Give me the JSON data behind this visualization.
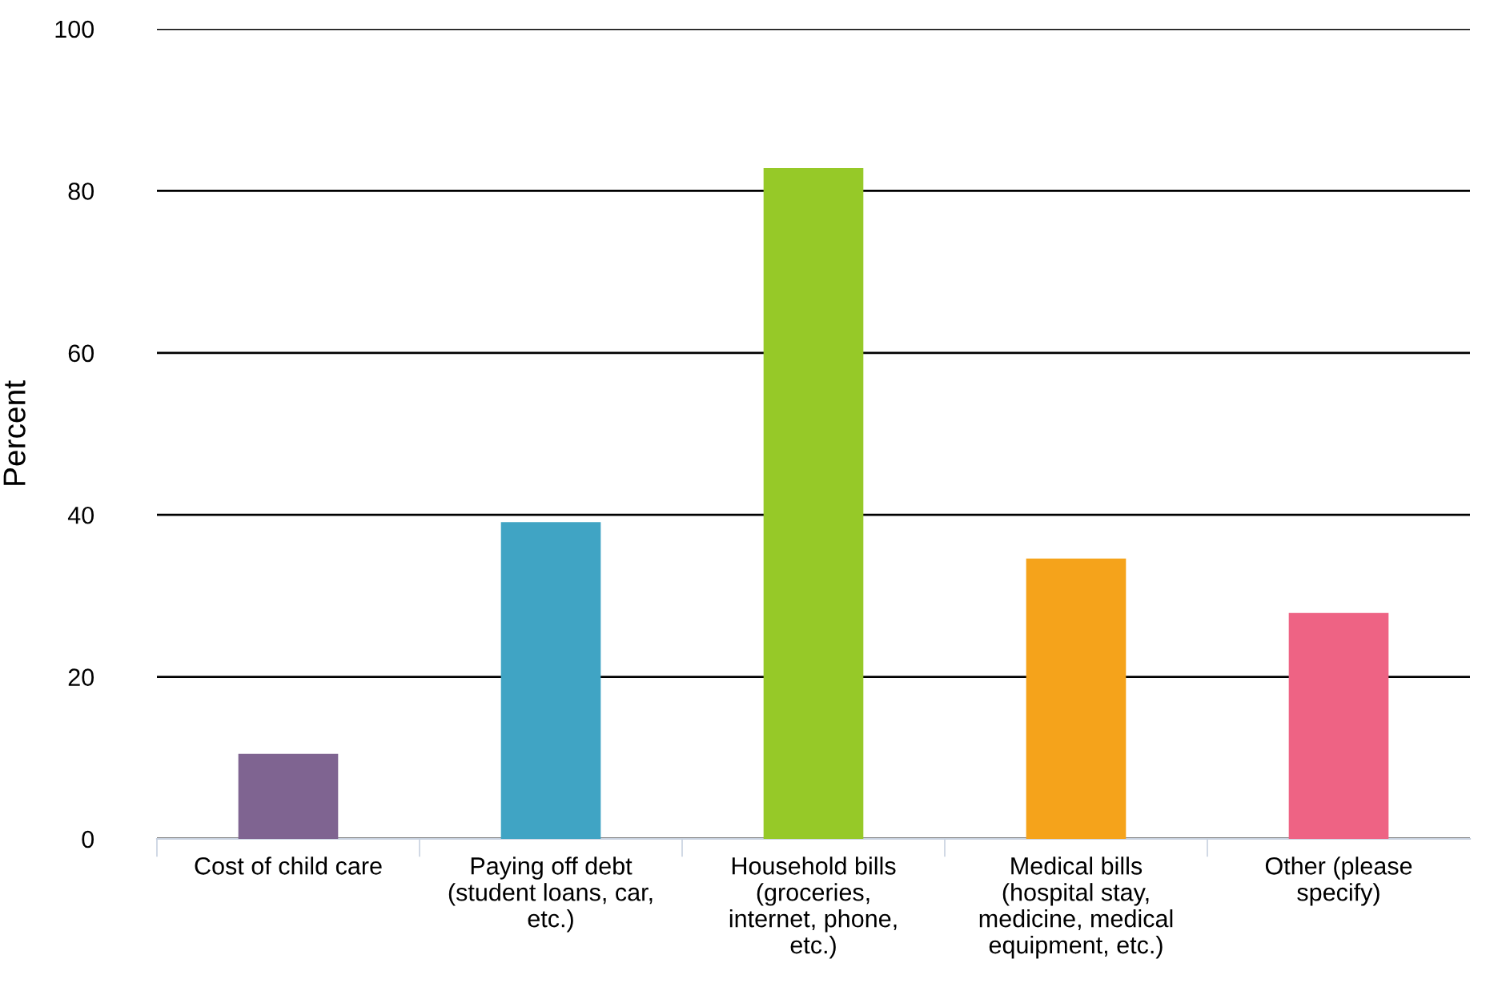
{
  "chart_data": {
    "type": "bar",
    "ylabel": "Percent",
    "categories": [
      "Cost of child care",
      "Paying off debt\n(student loans, car,\netc.)",
      "Household bills\n(groceries,\ninternet, phone,\netc.)",
      "Medical bills\n(hospital stay,\nmedicine, medical\nequipment, etc.)",
      "Other (please\nspecify)"
    ],
    "values": [
      10.5,
      39.1,
      82.8,
      34.6,
      27.9
    ],
    "colors": [
      "#7f6491",
      "#40a4c4",
      "#96c928",
      "#f5a31b",
      "#ee6384"
    ],
    "ylim": [
      0,
      100
    ],
    "yticks": [
      0,
      20,
      40,
      60,
      80,
      100
    ],
    "grid": "y"
  }
}
